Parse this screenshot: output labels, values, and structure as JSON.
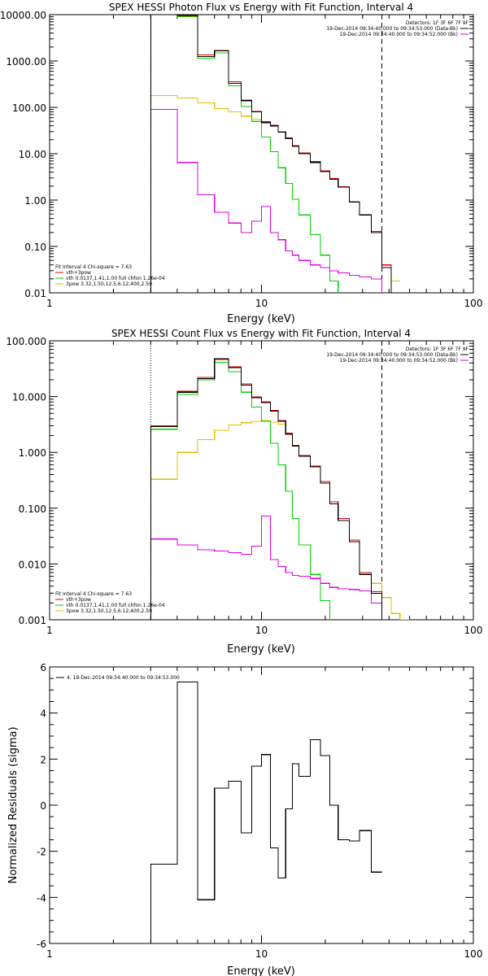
{
  "chart_data": [
    {
      "type": "line",
      "title": "SPEX HESSI Photon Flux vs Energy with Fit Function, Interval 4",
      "xlabel": "Energy (keV)",
      "ylabel": "",
      "xscale": "log",
      "yscale": "log",
      "xlim": [
        1,
        100
      ],
      "ylim": [
        0.01,
        10000
      ],
      "x_tick_labels": [
        "1",
        "10",
        "100"
      ],
      "y_tick_labels": [
        "0.01",
        "0.10",
        "1.00",
        "10.00",
        "100.00",
        "1000.00",
        "10000.00"
      ],
      "x_ticks": [
        1,
        10,
        100
      ],
      "y_ticks": [
        0.01,
        0.1,
        1,
        10,
        100,
        1000,
        10000
      ],
      "vertical_lines": [
        {
          "x": 3,
          "style": "dotted"
        },
        {
          "x": 37,
          "style": "dashed"
        }
      ],
      "legend_top_right": {
        "header": "Detectors: 1F 3F 6F 7F 9F",
        "entries": [
          {
            "label": "19-Dec-2014 09:34:40.000 to 09:34:53.000 (Data-Bk)",
            "color": "#000000"
          },
          {
            "label": "19-Dec-2014 09:34:40.000 to 09:34:52.000 (Bk)",
            "color": "#e000e0"
          }
        ]
      },
      "legend_bottom_left": {
        "header": "Fit Interval 4   Chi-square = 7.63",
        "entries": [
          {
            "label": "vth+3pow",
            "color": "#e00000"
          },
          {
            "label": "vth 0.0137,1.41,1.00  full chfon 1.26e-04",
            "color": "#00d000"
          },
          {
            "label": "3pow 3.32,1.50,12.5,6.12,400,2.50",
            "color": "#e0c000"
          }
        ]
      },
      "edges": [
        3,
        4,
        5,
        6,
        7,
        8,
        9,
        10,
        11,
        12,
        13,
        14,
        15,
        17,
        19,
        21,
        23,
        26,
        29,
        33,
        37,
        41,
        45
      ],
      "series": [
        {
          "name": "Data-Bk",
          "color": "#000000",
          "values": [
            10000,
            9800,
            1250,
            1650,
            330,
            140,
            80,
            47,
            40,
            29,
            21,
            14.5,
            10,
            6.5,
            4.1,
            2.8,
            1.9,
            0.9,
            0.48,
            0.2,
            0.035,
            null
          ]
        },
        {
          "name": "vth+3pow",
          "color": "#e00000",
          "values": [
            10000,
            9500,
            1350,
            1700,
            360,
            145,
            82,
            49,
            41,
            30,
            22,
            15,
            10.5,
            6.8,
            4.3,
            2.9,
            1.95,
            0.92,
            0.48,
            0.21,
            0.04,
            null
          ]
        },
        {
          "name": "vth",
          "color": "#00d000",
          "values": [
            10000,
            9000,
            1150,
            1500,
            290,
            105,
            50,
            23,
            11,
            5,
            2.3,
            1.05,
            0.48,
            0.18,
            0.065,
            0.018,
            null,
            null,
            null,
            null,
            null,
            null
          ]
        },
        {
          "name": "3pow",
          "color": "#e0c000",
          "values": [
            180,
            160,
            125,
            95,
            80,
            65,
            56,
            49,
            40,
            30,
            22,
            14.5,
            10,
            6.5,
            4.1,
            2.8,
            1.9,
            0.9,
            0.48,
            0.2,
            0.04,
            0.018
          ]
        },
        {
          "name": "Bk",
          "color": "#e000e0",
          "values": [
            90,
            6.5,
            1.3,
            0.55,
            0.32,
            0.2,
            0.35,
            0.72,
            0.2,
            0.14,
            0.08,
            0.065,
            0.05,
            0.04,
            0.035,
            0.03,
            0.027,
            0.024,
            0.022,
            0.02,
            null,
            null
          ]
        }
      ]
    },
    {
      "type": "line",
      "title": "SPEX HESSI Count Flux vs Energy with Fit Function, Interval 4",
      "xlabel": "Energy (keV)",
      "ylabel": "",
      "xscale": "log",
      "yscale": "log",
      "xlim": [
        1,
        100
      ],
      "ylim": [
        0.001,
        100
      ],
      "x_tick_labels": [
        "1",
        "10",
        "100"
      ],
      "y_tick_labels": [
        "0.001",
        "0.010",
        "0.100",
        "1.000",
        "10.000",
        "100.000"
      ],
      "x_ticks": [
        1,
        10,
        100
      ],
      "y_ticks": [
        0.001,
        0.01,
        0.1,
        1,
        10,
        100
      ],
      "vertical_lines": [
        {
          "x": 3,
          "style": "dotted"
        },
        {
          "x": 37,
          "style": "dashed"
        }
      ],
      "legend_top_right": {
        "header": "Detectors: 1F 3F 6F 7F 9F",
        "entries": [
          {
            "label": "19-Dec-2014 09:34:40.000 to 09:34:53.000 (Data-Bk)",
            "color": "#000000"
          },
          {
            "label": "19-Dec-2014 09:34:40.000 to 09:34:52.000 (Bk)",
            "color": "#e000e0"
          }
        ]
      },
      "legend_bottom_left": {
        "header": "Fit Interval 4   Chi-square = 7.63",
        "entries": [
          {
            "label": "vth+3pow",
            "color": "#e00000"
          },
          {
            "label": "vth 0.0137,1.41,1.00  full chfon 1.26e-04",
            "color": "#00d000"
          },
          {
            "label": "3pow 3.32,1.50,12.5,6.12,400,2.50",
            "color": "#e0c000"
          }
        ]
      },
      "edges": [
        3,
        4,
        5,
        6,
        7,
        8,
        9,
        10,
        11,
        12,
        13,
        14,
        15,
        17,
        19,
        21,
        23,
        26,
        29,
        33,
        37,
        41,
        45,
        50
      ],
      "series": [
        {
          "name": "Data-Bk",
          "color": "#000000",
          "values": [
            2.9,
            12,
            21,
            48,
            33,
            16,
            9.5,
            7.8,
            5.5,
            3.6,
            2.1,
            1.3,
            0.85,
            0.55,
            0.28,
            0.12,
            0.06,
            0.025,
            0.0065,
            0.003,
            null,
            null,
            null
          ]
        },
        {
          "name": "vth+3pow",
          "color": "#e00000",
          "values": [
            3.0,
            12.5,
            22,
            46,
            34,
            17,
            9.8,
            8,
            5.7,
            3.7,
            2.2,
            1.35,
            0.88,
            0.57,
            0.3,
            0.13,
            0.065,
            0.027,
            0.007,
            0.0032,
            null,
            null,
            null
          ]
        },
        {
          "name": "vth",
          "color": "#00d000",
          "values": [
            2.6,
            11,
            20,
            41,
            28,
            12,
            6.5,
            3.6,
            1.45,
            0.6,
            0.2,
            0.065,
            0.022,
            0.0065,
            0.0022,
            null,
            null,
            null,
            null,
            null,
            null,
            null,
            null
          ]
        },
        {
          "name": "3pow",
          "color": "#e0c000",
          "values": [
            0.33,
            1.0,
            1.7,
            2.5,
            3.1,
            3.4,
            3.6,
            3.7,
            3.5,
            3.2,
            2.2,
            1.35,
            0.88,
            0.57,
            0.3,
            0.13,
            0.065,
            0.027,
            0.007,
            0.0045,
            0.0025,
            0.0013,
            0.001
          ]
        },
        {
          "name": "Bk",
          "color": "#e000e0",
          "values": [
            0.028,
            0.022,
            0.018,
            0.017,
            0.016,
            0.015,
            0.021,
            0.072,
            0.012,
            0.009,
            0.007,
            0.0062,
            0.006,
            0.0055,
            0.0045,
            0.0038,
            0.0036,
            0.0035,
            0.0033,
            0.002,
            null,
            null,
            null
          ]
        }
      ]
    },
    {
      "type": "line",
      "title": "",
      "xlabel": "Energy (keV)",
      "ylabel": "Normalized Residuals (sigma)",
      "xscale": "log",
      "yscale": "linear",
      "xlim": [
        1,
        100
      ],
      "ylim": [
        -6,
        6
      ],
      "x_tick_labels": [
        "1",
        "10",
        "100"
      ],
      "y_tick_labels": [
        "-6",
        "-4",
        "-2",
        "0",
        "2",
        "4",
        "6"
      ],
      "x_ticks": [
        1,
        10,
        100
      ],
      "y_ticks": [
        -6,
        -4,
        -2,
        0,
        2,
        4,
        6
      ],
      "vertical_lines": [],
      "legend_top_left": {
        "header": "",
        "entries": [
          {
            "label": "4. 19-Dec-2014 09:34:40.000 to 09:34:53.000",
            "color": "#000000"
          }
        ]
      },
      "edges": [
        3,
        4,
        5,
        6,
        7,
        8,
        9,
        10,
        11,
        12,
        13,
        14,
        15,
        17,
        19,
        21,
        23,
        26,
        29,
        33,
        37
      ],
      "series": [
        {
          "name": "4. 19-Dec-2014 09:34:40.000 to 09:34:53.000",
          "color": "#000000",
          "values": [
            -2.55,
            5.35,
            -4.1,
            0.75,
            1.05,
            -1.2,
            1.7,
            2.2,
            -1.85,
            -3.15,
            -0.15,
            1.8,
            1.25,
            2.85,
            2.15,
            0.0,
            -1.5,
            -1.55,
            -1.1,
            -2.9
          ]
        }
      ]
    }
  ]
}
